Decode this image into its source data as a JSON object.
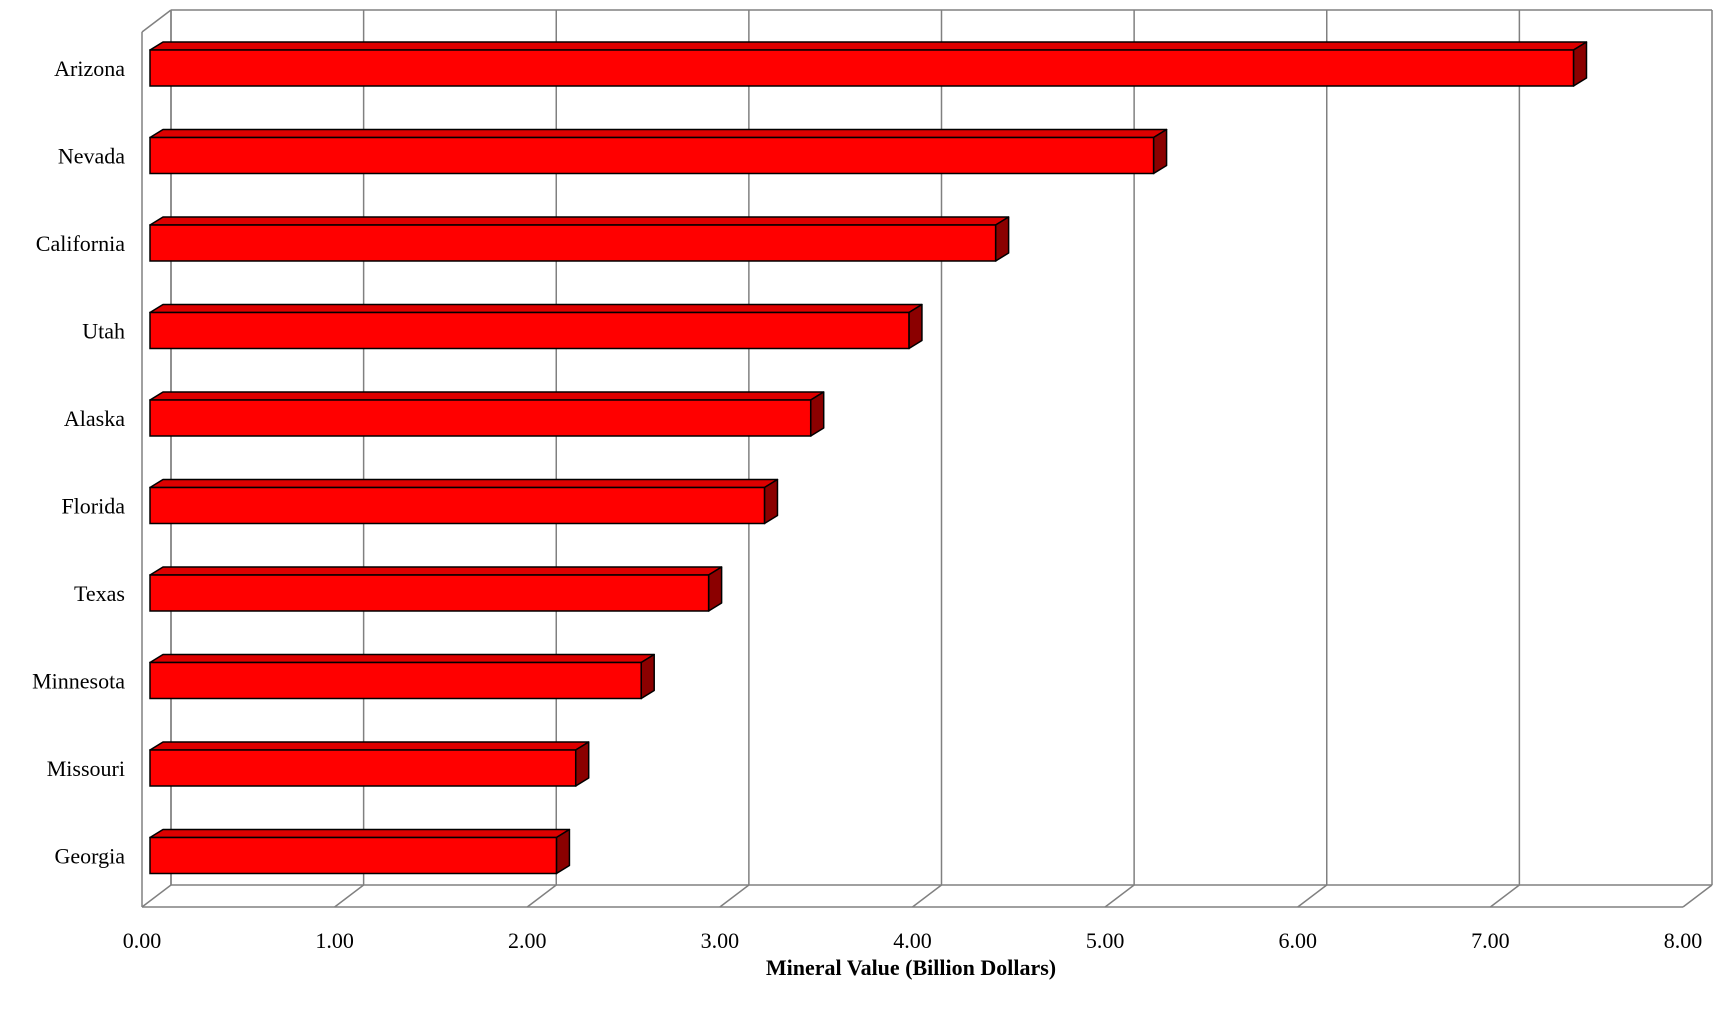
{
  "chart_data": {
    "type": "bar",
    "orientation": "horizontal",
    "style": "3d",
    "categories": [
      "Arizona",
      "Nevada",
      "California",
      "Utah",
      "Alaska",
      "Florida",
      "Texas",
      "Minnesota",
      "Missouri",
      "Georgia"
    ],
    "values": [
      7.39,
      5.21,
      4.39,
      3.94,
      3.43,
      3.19,
      2.9,
      2.55,
      2.21,
      2.11
    ],
    "title": "",
    "xlabel": "Mineral Value (Billion Dollars)",
    "ylabel": "",
    "xlim": [
      0,
      8
    ],
    "xticks": [
      "0.00",
      "1.00",
      "2.00",
      "3.00",
      "4.00",
      "5.00",
      "6.00",
      "7.00",
      "8.00"
    ],
    "grid": true,
    "legend": "none",
    "colors": {
      "bar_face": "#ff0000",
      "bar_top": "#dd0000",
      "bar_side": "#8b0000",
      "bar_stroke": "#000000",
      "grid": "#808080"
    }
  }
}
